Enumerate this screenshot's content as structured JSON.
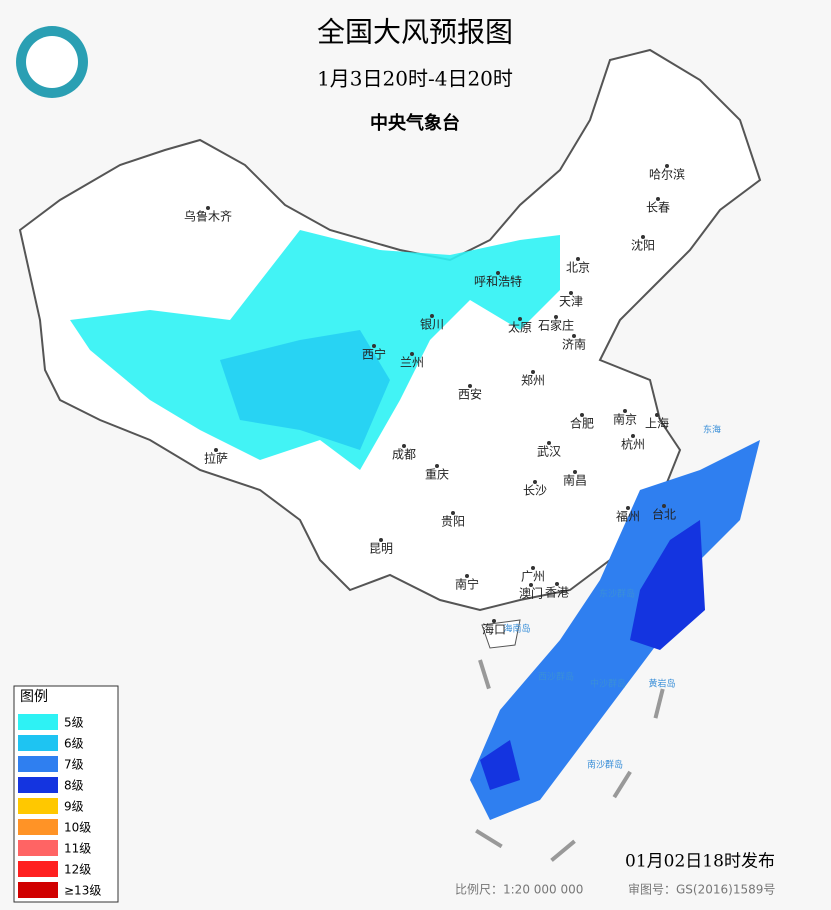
{
  "header": {
    "title": "全国大风预报图",
    "period": "1月3日20时-4日20时",
    "agency": "中央气象台"
  },
  "cities": [
    "乌鲁木齐",
    "哈尔滨",
    "长春",
    "沈阳",
    "北京",
    "呼和浩特",
    "天津",
    "银川",
    "太原",
    "石家庄",
    "济南",
    "西宁",
    "兰州",
    "郑州",
    "西安",
    "南京",
    "合肥",
    "上海",
    "杭州",
    "拉萨",
    "成都",
    "武汉",
    "重庆",
    "长沙",
    "南昌",
    "福州",
    "台北",
    "贵阳",
    "昆明",
    "广州",
    "南宁",
    "香港",
    "澳门",
    "海口"
  ],
  "map_labels": [
    "东海",
    "东沙群岛",
    "西沙群岛",
    "中沙群岛",
    "黄岩岛",
    "南沙群岛",
    "海南岛"
  ],
  "legend": {
    "title": "图例",
    "items": [
      {
        "label": "5级",
        "color": "#2ef2f4"
      },
      {
        "label": "6级",
        "color": "#1ec4f2"
      },
      {
        "label": "7级",
        "color": "#2f7ff0"
      },
      {
        "label": "8级",
        "color": "#1434e0"
      },
      {
        "label": "9级",
        "color": "#ffc800"
      },
      {
        "label": "10级",
        "color": "#ff9326"
      },
      {
        "label": "11级",
        "color": "#ff6464"
      },
      {
        "label": "12级",
        "color": "#ff2020"
      },
      {
        "label": "≥13级",
        "color": "#d00000"
      }
    ]
  },
  "footer": {
    "issued": "01月02日18时发布",
    "scale": "比例尺：1:20 000 000",
    "approval": "审图号：GS(2016)1589号"
  }
}
